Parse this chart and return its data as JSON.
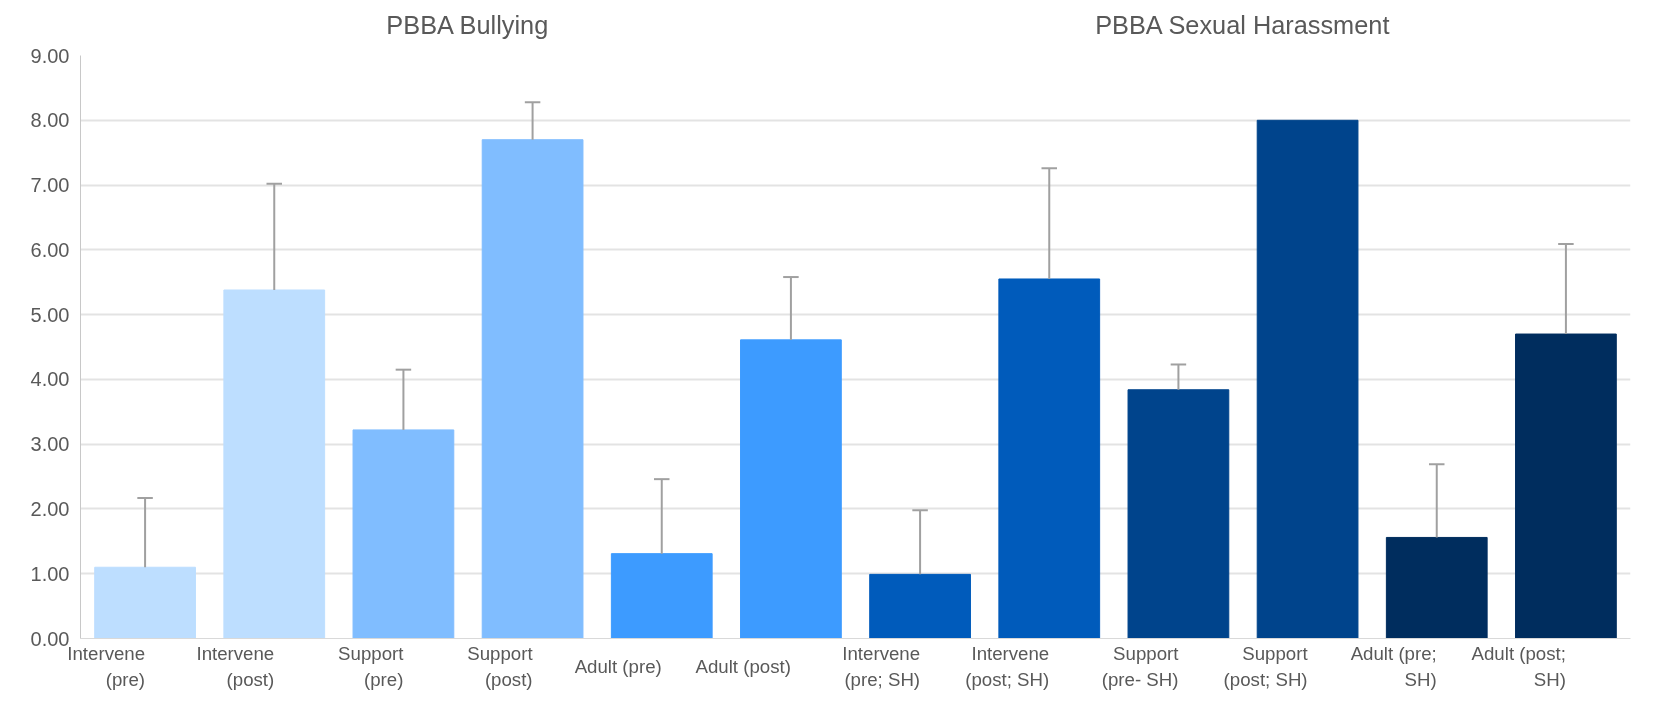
{
  "chart_data": {
    "type": "bar",
    "categories": [
      "Intervene\n(pre)",
      "Intervene\n(post)",
      "Support\n(pre)",
      "Support\n(post)",
      "Adult (pre)",
      "Adult (post)",
      "Intervene\n(pre; SH)",
      "Intervene\n(post; SH)",
      "Support\n(pre- SH)",
      "Support\n(post; SH)",
      "Adult (pre;\nSH)",
      "Adult (post;\nSH)"
    ],
    "values": [
      1.1,
      5.38,
      3.22,
      7.7,
      1.31,
      4.61,
      0.99,
      5.55,
      3.84,
      8.0,
      1.56,
      4.7
    ],
    "colors": [
      "#bddeff",
      "#bddeff",
      "#80bdff",
      "#80bdff",
      "#3d9bff",
      "#3d9bff",
      "#005bbb",
      "#005bbb",
      "#00448c",
      "#00448c",
      "#002d5e",
      "#002d5e"
    ],
    "errors": [
      [
        1.1,
        2.17
      ],
      [
        5.38,
        7.02
      ],
      [
        3.22,
        4.15
      ],
      [
        7.7,
        8.28
      ],
      [
        1.31,
        2.46
      ],
      [
        4.61,
        5.58
      ],
      [
        0.99,
        1.98
      ],
      [
        5.55,
        7.26
      ],
      [
        3.84,
        4.23
      ],
      [
        8.0,
        8.0
      ],
      [
        1.56,
        2.69
      ],
      [
        4.7,
        6.09
      ]
    ],
    "ylim": [
      0,
      9
    ],
    "yticks": [
      {
        "value": 0,
        "label": "0.00"
      },
      {
        "value": 1,
        "label": "1.00"
      },
      {
        "value": 2,
        "label": "2.00"
      },
      {
        "value": 3,
        "label": "3.00"
      },
      {
        "value": 4,
        "label": "4.00"
      },
      {
        "value": 5,
        "label": "5.00"
      },
      {
        "value": 6,
        "label": "6.00"
      },
      {
        "value": 7,
        "label": "7.00"
      },
      {
        "value": 8,
        "label": "8.00"
      },
      {
        "value": 9,
        "label": "9.00"
      }
    ],
    "grid": "y",
    "annotations": [
      "PBBA Bullying",
      "PBBA Sexual Harassment"
    ]
  }
}
